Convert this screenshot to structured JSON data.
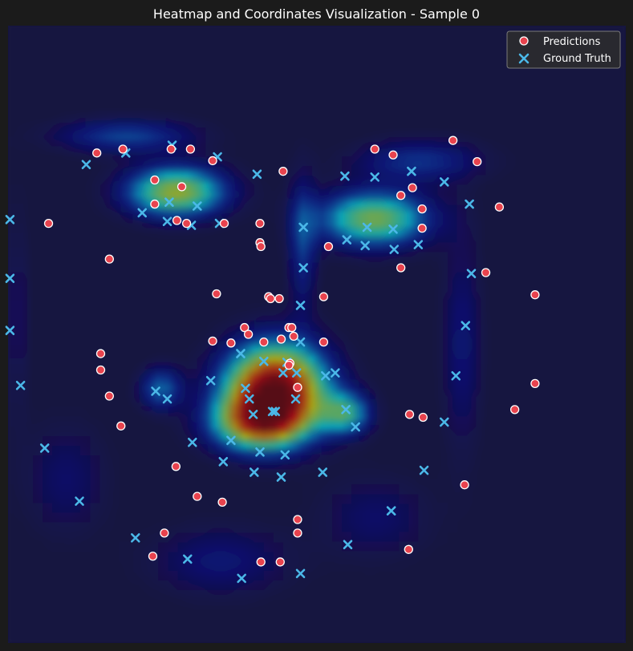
{
  "chart_data": {
    "type": "scatter",
    "title": "Heatmap and Coordinates Visualization - Sample 0",
    "xlim": [
      0,
      64
    ],
    "ylim": [
      64,
      0
    ],
    "grid": false,
    "axes_visible": false,
    "legend": "top-right",
    "heatmap": {
      "colormap": "jet",
      "background_color": "#15143f",
      "blobs": [
        {
          "x": 27.7,
          "y": 37.6,
          "sx": 3.6,
          "sy": 3.2,
          "w": 1.0
        },
        {
          "x": 25.8,
          "y": 41.2,
          "sx": 3.4,
          "sy": 2.0,
          "w": 0.55
        },
        {
          "x": 17.4,
          "y": 17.2,
          "sx": 3.6,
          "sy": 1.8,
          "w": 0.6
        },
        {
          "x": 37.9,
          "y": 20.0,
          "sx": 4.0,
          "sy": 2.0,
          "w": 0.55
        },
        {
          "x": 35.0,
          "y": 40.2,
          "sx": 1.8,
          "sy": 1.5,
          "w": 0.4
        },
        {
          "x": 15.8,
          "y": 37.6,
          "sx": 1.5,
          "sy": 1.5,
          "w": 0.3
        },
        {
          "x": 12.2,
          "y": 11.4,
          "sx": 5.0,
          "sy": 1.2,
          "w": 0.25
        },
        {
          "x": 42.5,
          "y": 14.0,
          "sx": 4.5,
          "sy": 1.5,
          "w": 0.22
        },
        {
          "x": 30.5,
          "y": 22.5,
          "sx": 1.0,
          "sy": 5.0,
          "w": 0.22
        },
        {
          "x": 22.0,
          "y": 55.5,
          "sx": 5.0,
          "sy": 2.5,
          "w": 0.15
        },
        {
          "x": 47.0,
          "y": 33.0,
          "sx": 1.4,
          "sy": 8.0,
          "w": 0.15
        },
        {
          "x": 6.0,
          "y": 47.0,
          "sx": 3.0,
          "sy": 4.0,
          "w": 0.12
        },
        {
          "x": 38.0,
          "y": 51.0,
          "sx": 4.0,
          "sy": 3.0,
          "w": 0.12
        },
        {
          "x": 1.0,
          "y": 30.0,
          "sx": 0.8,
          "sy": 8.0,
          "w": 0.1
        }
      ]
    },
    "series": [
      {
        "name": "Predictions",
        "marker": "circle",
        "color": "#e8434e",
        "x": [
          46.1,
          9.2,
          11.9,
          16.9,
          18.9,
          21.2,
          38.0,
          39.9,
          48.6,
          28.5,
          15.2,
          18.0,
          41.9,
          42.9,
          40.7,
          15.2,
          17.5,
          18.5,
          22.4,
          26.1,
          26.1,
          26.2,
          42.9,
          50.9,
          33.2,
          4.2,
          10.5,
          40.7,
          21.6,
          49.5,
          27.0,
          27.2,
          28.1,
          32.7,
          54.6,
          24.5,
          29.1,
          29.4,
          24.9,
          28.3,
          21.2,
          23.1,
          26.5,
          29.6,
          32.7,
          9.6,
          29.2,
          29.1,
          9.6,
          54.6,
          30.0,
          10.5,
          52.5,
          41.6,
          43.0,
          11.7,
          17.4,
          47.3,
          19.6,
          22.2,
          30.0,
          16.2,
          30.0,
          15.0,
          26.2,
          28.2,
          41.5
        ],
        "y": [
          11.9,
          13.2,
          12.8,
          12.8,
          12.8,
          14.0,
          12.8,
          13.4,
          14.1,
          15.1,
          16.0,
          16.7,
          16.8,
          19.0,
          17.6,
          18.5,
          20.2,
          20.5,
          20.5,
          20.5,
          22.5,
          22.9,
          21.0,
          18.8,
          22.9,
          20.5,
          24.2,
          25.1,
          27.8,
          25.6,
          28.1,
          28.3,
          28.3,
          28.1,
          27.9,
          31.3,
          31.3,
          31.3,
          32.0,
          32.5,
          32.7,
          32.9,
          32.8,
          32.2,
          32.8,
          34.0,
          35.0,
          35.2,
          35.7,
          37.1,
          37.5,
          38.4,
          39.8,
          40.3,
          40.6,
          41.5,
          45.7,
          47.6,
          48.8,
          49.4,
          51.2,
          52.6,
          52.6,
          55.0,
          55.6,
          55.6,
          54.3
        ]
      },
      {
        "name": "Ground Truth",
        "marker": "x",
        "color": "#4bb8e8",
        "x": [
          8.1,
          12.2,
          17.0,
          21.7,
          25.8,
          34.9,
          38.0,
          41.8,
          45.2,
          13.9,
          16.7,
          19.6,
          16.5,
          19.0,
          21.9,
          30.6,
          37.2,
          39.9,
          47.8,
          35.1,
          37.0,
          40.0,
          42.5,
          0.2,
          0.2,
          30.6,
          48.0,
          0.2,
          30.3,
          47.4,
          1.3,
          15.3,
          16.5,
          21.0,
          24.1,
          26.5,
          28.9,
          30.3,
          32.9,
          46.4,
          24.6,
          25.0,
          29.8,
          28.5,
          33.9,
          35.0,
          36.0,
          27.7,
          25.4,
          29.9,
          27.4,
          45.2,
          19.1,
          3.8,
          23.1,
          26.1,
          28.7,
          22.3,
          32.6,
          25.5,
          28.3,
          43.1,
          7.4,
          39.7,
          13.2,
          18.6,
          35.2,
          24.2,
          30.3
        ],
        "y": [
          14.4,
          13.2,
          12.4,
          13.6,
          15.4,
          15.6,
          15.7,
          15.1,
          16.2,
          19.4,
          18.3,
          18.7,
          20.3,
          20.7,
          20.5,
          20.9,
          20.9,
          21.1,
          18.5,
          22.2,
          22.8,
          23.2,
          22.7,
          20.1,
          26.2,
          25.1,
          25.7,
          31.6,
          29.0,
          31.1,
          37.3,
          37.9,
          38.7,
          36.8,
          34.0,
          34.8,
          34.9,
          32.8,
          36.3,
          36.3,
          37.6,
          38.7,
          38.7,
          36.0,
          36.0,
          39.8,
          41.6,
          40.0,
          40.3,
          36.0,
          40.0,
          41.1,
          43.2,
          43.8,
          43.0,
          44.2,
          44.5,
          45.2,
          46.3,
          46.3,
          46.8,
          46.1,
          49.3,
          50.3,
          53.1,
          55.3,
          53.8,
          57.3,
          56.8
        ]
      }
    ]
  }
}
